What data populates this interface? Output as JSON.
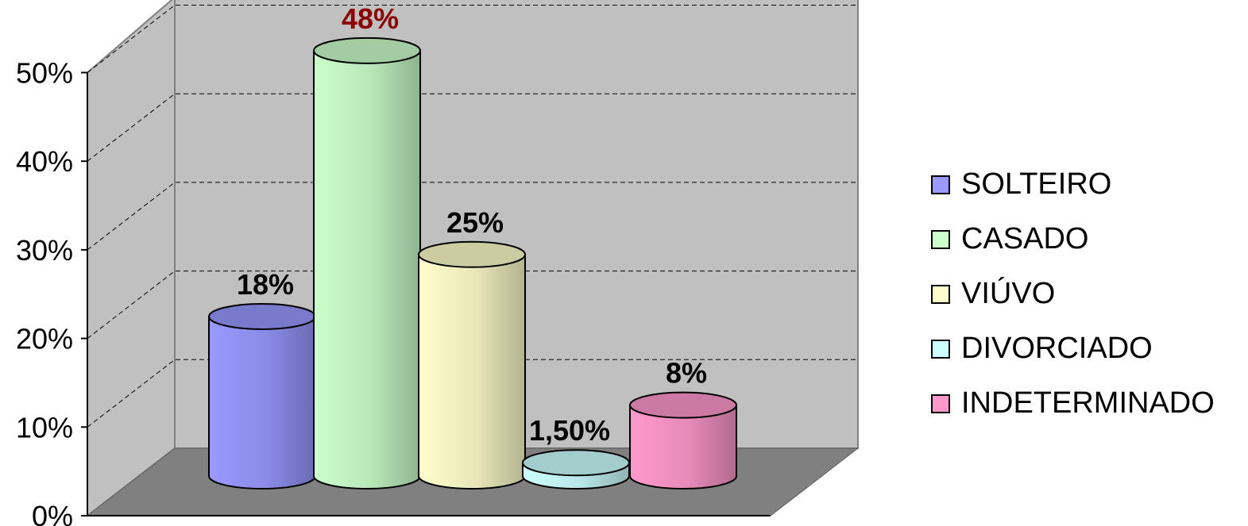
{
  "chart_data": {
    "type": "bar",
    "categories": [
      "SOLTEIRO",
      "CASADO",
      "VIÚVO",
      "DIVORCIADO",
      "INDETERMINADO"
    ],
    "values": [
      18,
      48,
      25,
      1.5,
      8
    ],
    "data_labels": [
      "18%",
      "48%",
      "25%",
      "1,50%",
      "8%"
    ],
    "ylim": [
      0,
      50
    ],
    "y_ticks": [
      {
        "value": 0,
        "label": "0%"
      },
      {
        "value": 10,
        "label": "10%"
      },
      {
        "value": 20,
        "label": "20%"
      },
      {
        "value": 30,
        "label": "30%"
      },
      {
        "value": 40,
        "label": "40%"
      },
      {
        "value": 50,
        "label": "50%"
      }
    ],
    "style": "3d-cylinder",
    "grid": true,
    "legend_position": "right",
    "colors": {
      "SOLTEIRO": "#9999ff",
      "CASADO": "#ccffcc",
      "VIÚVO": "#ffffcc",
      "DIVORCIADO": "#ccffff",
      "INDETERMINADO": "#ff99cc",
      "highlight_label": "#8b0000",
      "back_wall": "#c0c0c0",
      "floor": "#808080"
    }
  }
}
